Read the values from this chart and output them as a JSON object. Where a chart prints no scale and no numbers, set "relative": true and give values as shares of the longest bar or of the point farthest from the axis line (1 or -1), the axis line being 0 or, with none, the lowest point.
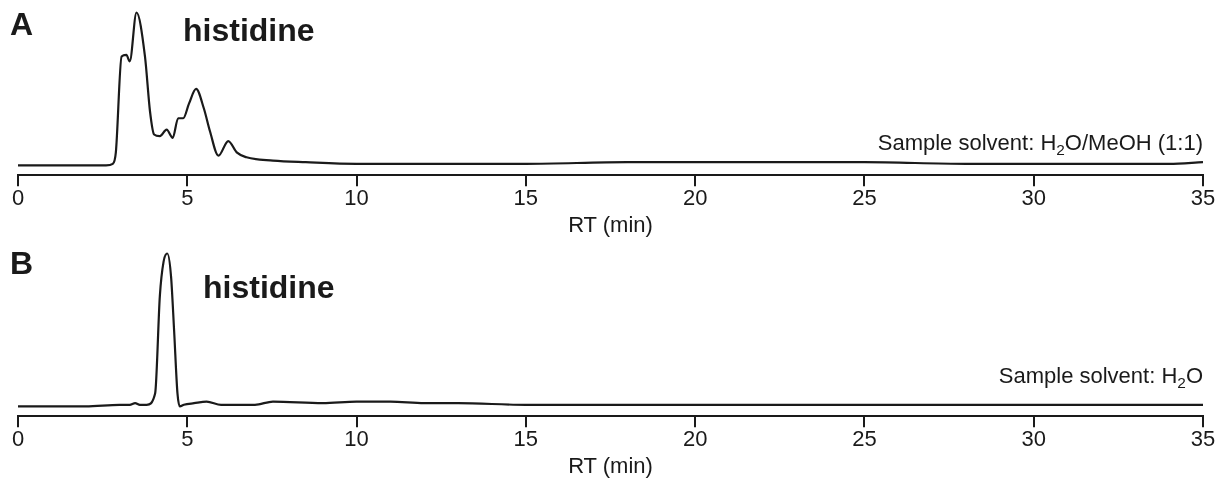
{
  "chart_data": [
    {
      "type": "line",
      "relative": true,
      "xlabel": "RT (min)",
      "xlim": [
        0,
        35
      ],
      "xticks": [
        0,
        5,
        10,
        15,
        20,
        25,
        30,
        35
      ],
      "grid": false,
      "legend": false,
      "marker": "none",
      "line_style": "solid",
      "annotations": [
        "A",
        "histidine",
        "Sample solvent: H$_{2}$O/MeOH (1:1)"
      ],
      "series": [
        {
          "color": "#1a1a1a",
          "x": [
            0,
            1,
            2,
            2.6,
            2.8,
            2.89,
            3.06,
            3.2,
            3.3,
            3.5,
            3.75,
            3.9,
            4.02,
            4.19,
            4.39,
            4.57,
            4.73,
            4.88,
            5.05,
            5.26,
            5.49,
            5.67,
            5.92,
            6.21,
            6.46,
            6.75,
            7.53,
            8.5,
            10,
            12,
            15,
            18,
            20,
            22,
            25,
            28,
            30,
            32,
            34,
            35
          ],
          "values": [
            0.06,
            0.06,
            0.06,
            0.06,
            0.07,
            0.14,
            0.73,
            0.74,
            0.7,
            1.0,
            0.73,
            0.39,
            0.25,
            0.24,
            0.28,
            0.23,
            0.35,
            0.35,
            0.44,
            0.53,
            0.41,
            0.27,
            0.12,
            0.21,
            0.14,
            0.11,
            0.09,
            0.08,
            0.07,
            0.07,
            0.07,
            0.08,
            0.08,
            0.08,
            0.08,
            0.07,
            0.07,
            0.07,
            0.07,
            0.08
          ]
        }
      ]
    },
    {
      "type": "line",
      "relative": true,
      "xlabel": "RT (min)",
      "xlim": [
        0,
        35
      ],
      "xticks": [
        0,
        5,
        10,
        15,
        20,
        25,
        30,
        35
      ],
      "grid": false,
      "legend": false,
      "marker": "none",
      "line_style": "solid",
      "annotations": [
        "B",
        "histidine",
        "Sample solvent: H$_{2}$O"
      ],
      "series": [
        {
          "color": "#1a1a1a",
          "x": [
            0,
            1,
            2,
            3,
            3.3,
            3.46,
            3.6,
            3.8,
            4.05,
            4.19,
            4.3,
            4.41,
            4.52,
            4.61,
            4.71,
            4.78,
            4.9,
            5.2,
            5.57,
            6,
            7,
            7.53,
            9,
            10,
            11,
            12,
            13,
            15,
            17,
            20,
            25,
            30,
            35
          ],
          "values": [
            0.06,
            0.06,
            0.06,
            0.07,
            0.07,
            0.08,
            0.07,
            0.07,
            0.14,
            0.74,
            0.95,
            1.0,
            0.86,
            0.53,
            0.14,
            0.06,
            0.07,
            0.08,
            0.09,
            0.07,
            0.07,
            0.09,
            0.08,
            0.09,
            0.09,
            0.08,
            0.08,
            0.07,
            0.07,
            0.07,
            0.07,
            0.07,
            0.07
          ]
        }
      ]
    }
  ]
}
